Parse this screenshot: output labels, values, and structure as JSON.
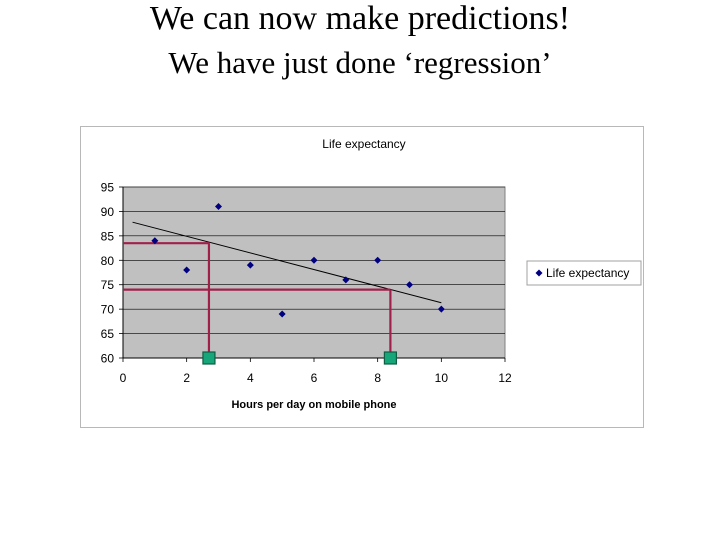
{
  "slide": {
    "title": "We can now make predictions!",
    "subtitle": "We have just done ‘regression’"
  },
  "colors": {
    "plot_bg": "#c0c0c0",
    "marker": "#000080",
    "trendline": "#000000",
    "prediction_line": "#a0204a",
    "prediction_marker": "#17a57a"
  },
  "chart_data": {
    "type": "scatter",
    "title": "Life expectancy",
    "xlabel": "Hours per day on mobile phone",
    "ylabel": "",
    "xlim": [
      0,
      12
    ],
    "ylim": [
      60,
      95
    ],
    "xticks": [
      0,
      2,
      4,
      6,
      8,
      10,
      12
    ],
    "yticks": [
      60,
      65,
      70,
      75,
      80,
      85,
      90,
      95
    ],
    "grid": true,
    "legend_position": "right",
    "series": [
      {
        "name": "Life expectancy",
        "marker": "diamond",
        "x": [
          1,
          2,
          3,
          4,
          5,
          6,
          7,
          8,
          9,
          10
        ],
        "y": [
          84,
          78,
          91,
          79,
          69,
          80,
          76,
          80,
          75,
          70
        ]
      }
    ],
    "trendline": {
      "x": [
        0.3,
        10
      ],
      "y": [
        87.8,
        71.3
      ]
    },
    "predictions": [
      {
        "x": 2.7,
        "y": 83.5
      },
      {
        "x": 8.4,
        "y": 74
      }
    ]
  }
}
